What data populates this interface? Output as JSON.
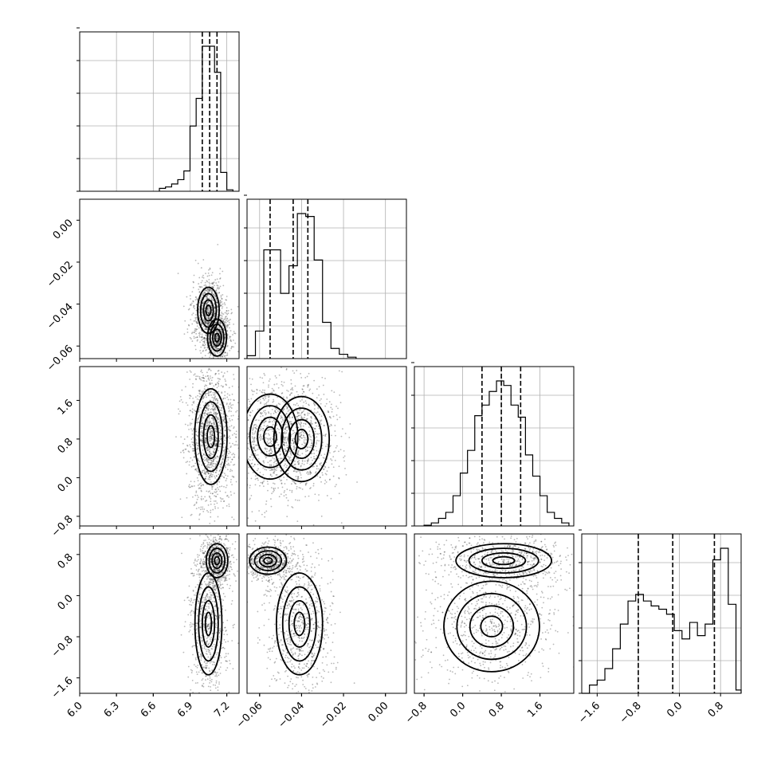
{
  "chart_data": {
    "type": "corner",
    "parameters": [
      {
        "range": [
          6.0,
          7.3
        ],
        "ticks": [
          6.0,
          6.3,
          6.6,
          6.9,
          7.2
        ],
        "tick_labels": [
          "6.0",
          "6.3",
          "6.6",
          "6.9",
          "7.2"
        ],
        "quantiles": [
          7.0,
          7.06,
          7.12
        ]
      },
      {
        "range": [
          -0.066,
          0.01
        ],
        "ticks": [
          -0.06,
          -0.04,
          -0.02,
          0.0
        ],
        "tick_labels": [
          "−0.06",
          "−0.04",
          "−0.02",
          "0.00"
        ],
        "quantiles": [
          -0.055,
          -0.044,
          -0.037
        ]
      },
      {
        "range": [
          -1.0,
          2.3
        ],
        "ticks": [
          -0.8,
          0.0,
          0.8,
          1.6
        ],
        "tick_labels": [
          "−0.8",
          "0.0",
          "0.8",
          "1.6"
        ],
        "quantiles": [
          0.4,
          0.8,
          1.2
        ]
      },
      {
        "range": [
          -1.9,
          1.2
        ],
        "ticks": [
          -1.6,
          -0.8,
          0.0,
          0.8
        ],
        "tick_labels": [
          "−1.6",
          "−0.8",
          "0.0",
          "0.8"
        ],
        "quantiles": [
          -0.8,
          -0.13,
          0.68
        ]
      }
    ],
    "histograms": [
      {
        "param": 0,
        "bins": [
          6.65,
          6.7,
          6.75,
          6.8,
          6.85,
          6.9,
          6.95,
          7.0,
          7.05,
          7.1,
          7.15,
          7.2,
          7.25
        ],
        "counts": [
          0.02,
          0.03,
          0.05,
          0.08,
          0.14,
          0.45,
          0.64,
          1.0,
          1.0,
          0.82,
          0.13,
          0.01
        ]
      },
      {
        "param": 1,
        "bins": [
          -0.066,
          -0.062,
          -0.058,
          -0.054,
          -0.05,
          -0.046,
          -0.042,
          -0.038,
          -0.034,
          -0.03,
          -0.026,
          -0.022,
          -0.018,
          -0.014
        ],
        "counts": [
          0.02,
          0.19,
          0.75,
          0.75,
          0.45,
          0.64,
          1.0,
          0.98,
          0.68,
          0.25,
          0.07,
          0.03,
          0.01
        ]
      },
      {
        "param": 2,
        "bins": [
          -0.8,
          -0.65,
          -0.5,
          -0.35,
          -0.2,
          -0.05,
          0.1,
          0.25,
          0.4,
          0.55,
          0.7,
          0.85,
          1.0,
          1.15,
          1.3,
          1.45,
          1.6,
          1.75,
          1.9,
          2.05,
          2.2
        ],
        "counts": [
          0.005,
          0.02,
          0.05,
          0.09,
          0.2,
          0.35,
          0.5,
          0.73,
          0.8,
          0.89,
          0.96,
          0.93,
          0.8,
          0.72,
          0.47,
          0.33,
          0.2,
          0.09,
          0.05,
          0.02
        ]
      },
      {
        "param": 3,
        "bins": [
          -1.9,
          -1.75,
          -1.6,
          -1.45,
          -1.3,
          -1.15,
          -1.0,
          -0.85,
          -0.7,
          -0.55,
          -0.4,
          -0.25,
          -0.1,
          0.05,
          0.2,
          0.35,
          0.5,
          0.65,
          0.8,
          0.95,
          1.1,
          1.2
        ],
        "counts": [
          0.0,
          0.05,
          0.08,
          0.15,
          0.27,
          0.42,
          0.56,
          0.6,
          0.56,
          0.53,
          0.51,
          0.48,
          0.38,
          0.33,
          0.43,
          0.35,
          0.42,
          0.81,
          0.88,
          0.54,
          0.02
        ]
      }
    ],
    "density_panels": [
      {
        "x_param": 0,
        "y_param": 1,
        "modes": [
          {
            "mx": 7.05,
            "my": -0.043,
            "sx": 0.04,
            "sy": 0.005,
            "w": 0.55
          },
          {
            "mx": 7.12,
            "my": -0.056,
            "sx": 0.035,
            "sy": 0.004,
            "w": 0.45
          }
        ]
      },
      {
        "x_param": 0,
        "y_param": 2,
        "modes": [
          {
            "mx": 7.07,
            "my": 0.85,
            "sx": 0.06,
            "sy": 0.45,
            "w": 1.0
          }
        ]
      },
      {
        "x_param": 1,
        "y_param": 2,
        "modes": [
          {
            "mx": -0.055,
            "my": 0.85,
            "sx": 0.006,
            "sy": 0.4,
            "w": 0.5
          },
          {
            "mx": -0.04,
            "my": 0.8,
            "sx": 0.006,
            "sy": 0.4,
            "w": 0.5
          }
        ]
      },
      {
        "x_param": 0,
        "y_param": 3,
        "modes": [
          {
            "mx": 7.12,
            "my": 0.68,
            "sx": 0.04,
            "sy": 0.15,
            "w": 0.45
          },
          {
            "mx": 7.05,
            "my": -0.55,
            "sx": 0.05,
            "sy": 0.45,
            "w": 0.55
          }
        ]
      },
      {
        "x_param": 1,
        "y_param": 3,
        "modes": [
          {
            "mx": -0.056,
            "my": 0.68,
            "sx": 0.004,
            "sy": 0.12,
            "w": 0.45
          },
          {
            "mx": -0.041,
            "my": -0.55,
            "sx": 0.005,
            "sy": 0.45,
            "w": 0.55
          }
        ]
      },
      {
        "x_param": 2,
        "y_param": 3,
        "modes": [
          {
            "mx": 0.85,
            "my": 0.68,
            "sx": 0.45,
            "sy": 0.15,
            "w": 0.45
          },
          {
            "mx": 0.6,
            "my": -0.6,
            "sx": 0.45,
            "sy": 0.4,
            "w": 0.55
          }
        ]
      }
    ]
  }
}
